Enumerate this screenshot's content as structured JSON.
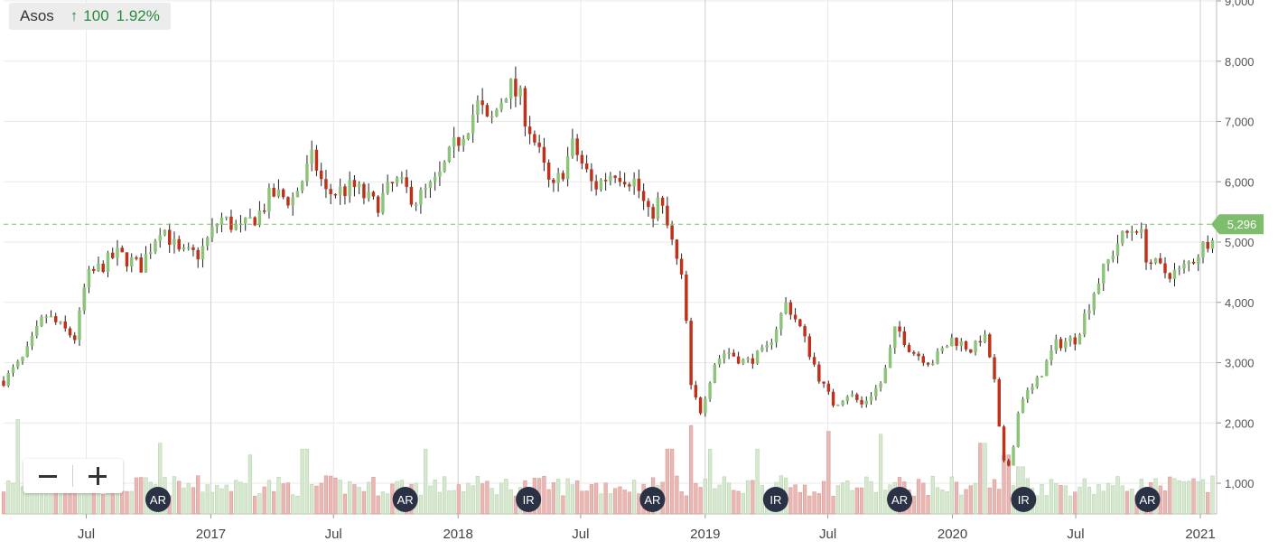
{
  "ticker": {
    "name": "Asos",
    "arrow": "↑",
    "change": "100",
    "change_pct": "1.92%"
  },
  "zoom": {
    "minus_icon": "minus-icon",
    "plus_icon": "plus-icon"
  },
  "colors": {
    "up": "#8cc57a",
    "down": "#c0311a",
    "volume_up": "#d6e8cf",
    "volume_down": "#eab8b4",
    "last_price": "#7dbd6b",
    "event_badge": "#2b3245",
    "grid": "#e9e9e9"
  },
  "chart_data": {
    "type": "candlestick",
    "y_axis": {
      "min": 500,
      "max": 9000,
      "ticks": [
        "1,000",
        "2,000",
        "3,000",
        "4,000",
        "5,000",
        "6,000",
        "7,000",
        "8,000",
        "9,000"
      ],
      "tick_values": [
        1000,
        2000,
        3000,
        4000,
        5000,
        6000,
        7000,
        8000,
        9000
      ],
      "position": "right"
    },
    "x_axis": {
      "start": "2016-03-01",
      "end": "2021-01-25",
      "labels": [
        {
          "text": "Jul",
          "date": "2016-07-01"
        },
        {
          "text": "2017",
          "date": "2017-01-01"
        },
        {
          "text": "Jul",
          "date": "2017-07-01"
        },
        {
          "text": "2018",
          "date": "2018-01-01"
        },
        {
          "text": "Jul",
          "date": "2018-07-01"
        },
        {
          "text": "2019",
          "date": "2019-01-01"
        },
        {
          "text": "Jul",
          "date": "2019-07-01"
        },
        {
          "text": "2020",
          "date": "2020-01-01"
        },
        {
          "text": "Jul",
          "date": "2020-07-01"
        },
        {
          "text": "2021",
          "date": "2021-01-01"
        }
      ]
    },
    "last_price": {
      "value": 5296,
      "label": "5,296"
    },
    "close_path": [
      [
        "2016-03-01",
        2700
      ],
      [
        "2016-04-01",
        3100
      ],
      [
        "2016-05-01",
        3800
      ],
      [
        "2016-06-15",
        3400
      ],
      [
        "2016-07-01",
        4400
      ],
      [
        "2016-08-15",
        4800
      ],
      [
        "2016-09-20",
        4600
      ],
      [
        "2016-10-20",
        5300
      ],
      [
        "2016-11-15",
        4800
      ],
      [
        "2016-12-15",
        4800
      ],
      [
        "2017-01-15",
        5400
      ],
      [
        "2017-02-15",
        5200
      ],
      [
        "2017-03-15",
        5500
      ],
      [
        "2017-04-01",
        5800
      ],
      [
        "2017-05-01",
        5700
      ],
      [
        "2017-06-01",
        6400
      ],
      [
        "2017-06-20",
        5800
      ],
      [
        "2017-08-01",
        5900
      ],
      [
        "2017-09-01",
        5600
      ],
      [
        "2017-10-01",
        6000
      ],
      [
        "2017-11-01",
        5700
      ],
      [
        "2017-12-01",
        6000
      ],
      [
        "2018-01-01",
        6700
      ],
      [
        "2018-02-01",
        7300
      ],
      [
        "2018-02-15",
        6900
      ],
      [
        "2018-03-15",
        7600
      ],
      [
        "2018-04-01",
        7400
      ],
      [
        "2018-04-20",
        6800
      ],
      [
        "2018-05-20",
        5800
      ],
      [
        "2018-06-20",
        6600
      ],
      [
        "2018-07-20",
        5900
      ],
      [
        "2018-08-20",
        6200
      ],
      [
        "2018-09-20",
        6000
      ],
      [
        "2018-10-10",
        5400
      ],
      [
        "2018-10-25",
        5700
      ],
      [
        "2018-11-10",
        5100
      ],
      [
        "2018-12-01",
        4200
      ],
      [
        "2018-12-10",
        2600
      ],
      [
        "2018-12-25",
        2200
      ],
      [
        "2019-01-15",
        3000
      ],
      [
        "2019-02-01",
        3200
      ],
      [
        "2019-03-01",
        3000
      ],
      [
        "2019-04-01",
        3200
      ],
      [
        "2019-05-01",
        4000
      ],
      [
        "2019-05-20",
        3600
      ],
      [
        "2019-06-20",
        2700
      ],
      [
        "2019-07-10",
        2300
      ],
      [
        "2019-08-01",
        2500
      ],
      [
        "2019-08-20",
        2300
      ],
      [
        "2019-09-20",
        2700
      ],
      [
        "2019-10-10",
        3600
      ],
      [
        "2019-11-01",
        3200
      ],
      [
        "2019-12-01",
        3000
      ],
      [
        "2020-01-01",
        3400
      ],
      [
        "2020-02-01",
        3200
      ],
      [
        "2020-02-15",
        3500
      ],
      [
        "2020-03-01",
        2900
      ],
      [
        "2020-03-10",
        1900
      ],
      [
        "2020-03-20",
        1100
      ],
      [
        "2020-04-01",
        1700
      ],
      [
        "2020-04-10",
        2400
      ],
      [
        "2020-05-01",
        2600
      ],
      [
        "2020-06-01",
        3300
      ],
      [
        "2020-07-01",
        3400
      ],
      [
        "2020-08-01",
        4300
      ],
      [
        "2020-09-01",
        5000
      ],
      [
        "2020-10-01",
        5300
      ],
      [
        "2020-10-15",
        4700
      ],
      [
        "2020-11-10",
        4500
      ],
      [
        "2020-12-01",
        4500
      ],
      [
        "2020-12-20",
        4700
      ],
      [
        "2021-01-10",
        5000
      ],
      [
        "2021-01-25",
        5300
      ]
    ],
    "volume_scale": {
      "min": 500,
      "max": 2200
    },
    "volume_spikes": [
      [
        "2016-03-20",
        2100
      ],
      [
        "2016-10-20",
        1700
      ],
      [
        "2017-03-01",
        1500
      ],
      [
        "2017-05-20",
        1600
      ],
      [
        "2017-11-15",
        1600
      ],
      [
        "2018-11-10",
        1600
      ],
      [
        "2018-12-10",
        2000
      ],
      [
        "2019-01-10",
        1600
      ],
      [
        "2019-03-20",
        1600
      ],
      [
        "2019-07-01",
        1900
      ],
      [
        "2019-09-15",
        1850
      ],
      [
        "2020-02-15",
        1700
      ],
      [
        "2020-03-20",
        1500
      ],
      [
        "2020-04-10",
        1300
      ]
    ],
    "events": [
      {
        "label": "AR",
        "date": "2016-10-15"
      },
      {
        "label": "AR",
        "date": "2017-10-15"
      },
      {
        "label": "IR",
        "date": "2018-04-15"
      },
      {
        "label": "AR",
        "date": "2018-10-15"
      },
      {
        "label": "IR",
        "date": "2019-04-15"
      },
      {
        "label": "AR",
        "date": "2019-10-15"
      },
      {
        "label": "IR",
        "date": "2020-04-15"
      },
      {
        "label": "AR",
        "date": "2020-10-15"
      }
    ]
  }
}
